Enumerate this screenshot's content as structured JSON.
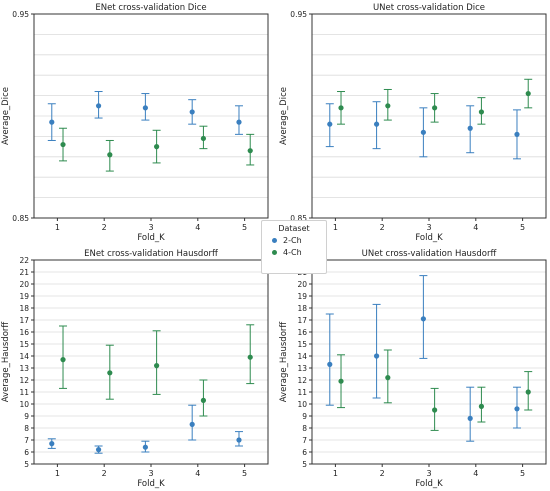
{
  "chart_data": [
    {
      "type": "scatter",
      "title": "ENet cross-validation Dice",
      "xlabel": "Fold_K",
      "ylabel": "Average_Dice",
      "x": [
        1,
        2,
        3,
        4,
        5
      ],
      "xticks": [
        "1",
        "2",
        "3",
        "4",
        "5"
      ],
      "ylim": [
        0.85,
        0.95
      ],
      "yticks": [
        {
          "v": 0.85,
          "label": "0.85"
        },
        {
          "v": 0.95,
          "label": "0.95"
        }
      ],
      "grid": true,
      "series": [
        {
          "name": "2-Ch",
          "color": "#3a7fbf",
          "values": [
            0.897,
            0.905,
            0.904,
            0.902,
            0.897
          ],
          "err_low": [
            0.888,
            0.899,
            0.898,
            0.896,
            0.891
          ],
          "err_high": [
            0.906,
            0.912,
            0.911,
            0.908,
            0.905
          ]
        },
        {
          "name": "4-Ch",
          "color": "#2e8b4f",
          "values": [
            0.886,
            0.881,
            0.885,
            0.889,
            0.883
          ],
          "err_low": [
            0.878,
            0.873,
            0.877,
            0.884,
            0.876
          ],
          "err_high": [
            0.894,
            0.888,
            0.893,
            0.895,
            0.891
          ]
        }
      ]
    },
    {
      "type": "scatter",
      "title": "UNet cross-validation Dice",
      "xlabel": "Fold_K",
      "ylabel": "Average_Dice",
      "x": [
        1,
        2,
        3,
        4,
        5
      ],
      "xticks": [
        "1",
        "2",
        "3",
        "4",
        "5"
      ],
      "ylim": [
        0.85,
        0.95
      ],
      "yticks": [
        {
          "v": 0.85,
          "label": "0.85"
        },
        {
          "v": 0.95,
          "label": "0.95"
        }
      ],
      "grid": true,
      "series": [
        {
          "name": "2-Ch",
          "color": "#3a7fbf",
          "values": [
            0.896,
            0.896,
            0.892,
            0.894,
            0.891
          ],
          "err_low": [
            0.885,
            0.884,
            0.88,
            0.882,
            0.879
          ],
          "err_high": [
            0.906,
            0.907,
            0.904,
            0.905,
            0.903
          ]
        },
        {
          "name": "4-Ch",
          "color": "#2e8b4f",
          "values": [
            0.904,
            0.905,
            0.904,
            0.902,
            0.911
          ],
          "err_low": [
            0.896,
            0.898,
            0.897,
            0.896,
            0.904
          ],
          "err_high": [
            0.912,
            0.913,
            0.911,
            0.909,
            0.918
          ]
        }
      ]
    },
    {
      "type": "scatter",
      "title": "ENet cross-validation Hausdorff",
      "xlabel": "Fold_K",
      "ylabel": "Average_Hausdorff",
      "x": [
        1,
        2,
        3,
        4,
        5
      ],
      "xticks": [
        "1",
        "2",
        "3",
        "4",
        "5"
      ],
      "ylim": [
        5,
        22
      ],
      "yticks": [
        {
          "v": 5,
          "label": "5"
        },
        {
          "v": 6,
          "label": "6"
        },
        {
          "v": 7,
          "label": "7"
        },
        {
          "v": 8,
          "label": "8"
        },
        {
          "v": 9,
          "label": "9"
        },
        {
          "v": 10,
          "label": "10"
        },
        {
          "v": 11,
          "label": "11"
        },
        {
          "v": 12,
          "label": "12"
        },
        {
          "v": 13,
          "label": "13"
        },
        {
          "v": 14,
          "label": "14"
        },
        {
          "v": 15,
          "label": "15"
        },
        {
          "v": 16,
          "label": "16"
        },
        {
          "v": 17,
          "label": "17"
        },
        {
          "v": 18,
          "label": "18"
        },
        {
          "v": 19,
          "label": "19"
        },
        {
          "v": 20,
          "label": "20"
        },
        {
          "v": 21,
          "label": "21"
        },
        {
          "v": 22,
          "label": "22"
        }
      ],
      "grid": true,
      "series": [
        {
          "name": "2-Ch",
          "color": "#3a7fbf",
          "values": [
            6.7,
            6.2,
            6.4,
            8.3,
            7.0
          ],
          "err_low": [
            6.3,
            5.9,
            6.0,
            7.0,
            6.5
          ],
          "err_high": [
            7.1,
            6.5,
            6.9,
            9.9,
            7.7
          ]
        },
        {
          "name": "4-Ch",
          "color": "#2e8b4f",
          "values": [
            13.7,
            12.6,
            13.2,
            10.3,
            13.9
          ],
          "err_low": [
            11.3,
            10.4,
            10.8,
            9.0,
            11.7
          ],
          "err_high": [
            16.5,
            14.9,
            16.1,
            12.0,
            16.6
          ]
        }
      ]
    },
    {
      "type": "scatter",
      "title": "UNet cross-validation Hausdorff",
      "xlabel": "Fold_K",
      "ylabel": "Average_Hausdorff",
      "x": [
        1,
        2,
        3,
        4,
        5
      ],
      "xticks": [
        "1",
        "2",
        "3",
        "4",
        "5"
      ],
      "ylim": [
        5,
        22
      ],
      "yticks": [
        {
          "v": 5,
          "label": "5"
        },
        {
          "v": 6,
          "label": "6"
        },
        {
          "v": 7,
          "label": "7"
        },
        {
          "v": 8,
          "label": "8"
        },
        {
          "v": 9,
          "label": "9"
        },
        {
          "v": 10,
          "label": "10"
        },
        {
          "v": 11,
          "label": "11"
        },
        {
          "v": 12,
          "label": "12"
        },
        {
          "v": 13,
          "label": "13"
        },
        {
          "v": 14,
          "label": "14"
        },
        {
          "v": 15,
          "label": "15"
        },
        {
          "v": 16,
          "label": "16"
        },
        {
          "v": 17,
          "label": "17"
        },
        {
          "v": 18,
          "label": "18"
        },
        {
          "v": 19,
          "label": "19"
        },
        {
          "v": 20,
          "label": "20"
        },
        {
          "v": 21,
          "label": "21"
        },
        {
          "v": 22,
          "label": "22"
        }
      ],
      "grid": true,
      "series": [
        {
          "name": "2-Ch",
          "color": "#3a7fbf",
          "values": [
            13.3,
            14.0,
            17.1,
            8.8,
            9.6
          ],
          "err_low": [
            9.9,
            10.5,
            13.8,
            6.9,
            8.0
          ],
          "err_high": [
            17.5,
            18.3,
            20.7,
            11.4,
            11.4
          ]
        },
        {
          "name": "4-Ch",
          "color": "#2e8b4f",
          "values": [
            11.9,
            12.2,
            9.5,
            9.8,
            11.0
          ],
          "err_low": [
            9.7,
            10.1,
            7.8,
            8.5,
            9.5
          ],
          "err_high": [
            14.1,
            14.5,
            11.3,
            11.4,
            12.7
          ]
        }
      ]
    }
  ],
  "legend": {
    "title": "Dataset",
    "items": [
      {
        "label": "2-Ch",
        "color": "#3a7fbf"
      },
      {
        "label": "4-Ch",
        "color": "#2e8b4f"
      }
    ]
  }
}
